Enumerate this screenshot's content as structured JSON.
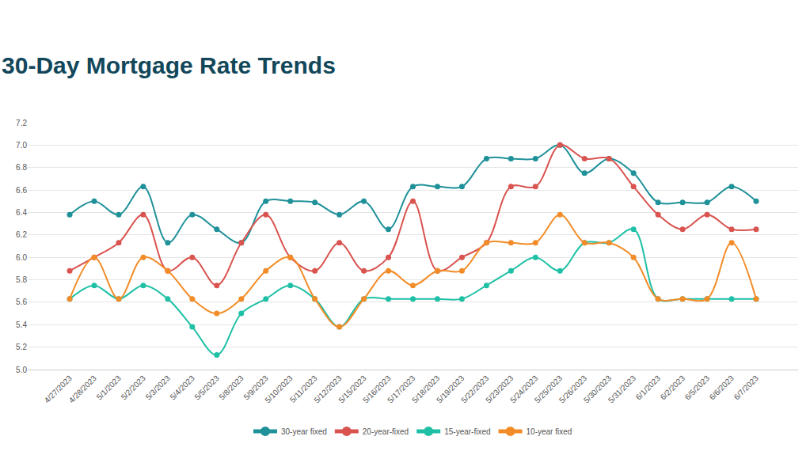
{
  "chart_data": {
    "type": "line",
    "title": "30-Day Mortgage Rate Trends",
    "categories": [
      "4/27/2023",
      "4/28/2023",
      "5/1/2023",
      "5/2/2023",
      "5/3/2023",
      "5/4/2023",
      "5/5/2023",
      "5/8/2023",
      "5/9/2023",
      "5/10/2023",
      "5/11/2023",
      "5/12/2023",
      "5/15/2023",
      "5/16/2023",
      "5/17/2023",
      "5/18/2023",
      "5/19/2023",
      "5/22/2023",
      "5/23/2023",
      "5/24/2023",
      "5/25/2023",
      "5/26/2023",
      "5/30/2023",
      "5/31/2023",
      "6/1/2023",
      "6/2/2023",
      "6/5/2023",
      "6/6/2023",
      "6/7/2023"
    ],
    "series": [
      {
        "name": "30-year fixed",
        "color": "#1f9199",
        "values": [
          6.38,
          6.5,
          6.38,
          6.63,
          6.13,
          6.38,
          6.25,
          6.13,
          6.5,
          6.5,
          6.49,
          6.38,
          6.5,
          6.25,
          6.63,
          6.63,
          6.63,
          6.88,
          6.88,
          6.88,
          7.0,
          6.75,
          6.88,
          6.75,
          6.49,
          6.49,
          6.49,
          6.63,
          6.5
        ]
      },
      {
        "name": "20-year-fixed",
        "color": "#d9534f",
        "values": [
          5.88,
          6.0,
          6.13,
          6.38,
          5.88,
          6.0,
          5.75,
          6.13,
          6.38,
          6.0,
          5.88,
          6.13,
          5.88,
          6.0,
          6.5,
          5.88,
          6.0,
          6.13,
          6.63,
          6.63,
          7.0,
          6.88,
          6.88,
          6.63,
          6.38,
          6.25,
          6.38,
          6.25,
          6.25
        ]
      },
      {
        "name": "15-year-fixed",
        "color": "#1fc0a6",
        "values": [
          5.63,
          5.75,
          5.63,
          5.75,
          5.63,
          5.38,
          5.13,
          5.5,
          5.63,
          5.75,
          5.63,
          5.38,
          5.63,
          5.63,
          5.63,
          5.63,
          5.63,
          5.75,
          5.88,
          6.0,
          5.88,
          6.13,
          6.13,
          6.25,
          5.63,
          5.63,
          5.63,
          5.63,
          5.63
        ]
      },
      {
        "name": "10-year fixed",
        "color": "#f28c28",
        "values": [
          5.63,
          6.0,
          5.63,
          6.0,
          5.88,
          5.63,
          5.5,
          5.63,
          5.88,
          6.0,
          5.63,
          5.38,
          5.63,
          5.88,
          5.75,
          5.88,
          5.88,
          6.13,
          6.13,
          6.13,
          6.38,
          6.13,
          6.13,
          6.0,
          5.63,
          5.63,
          5.63,
          6.13,
          5.63
        ]
      }
    ],
    "ylim": [
      5.0,
      7.2
    ],
    "yticks": [
      {
        "value": 5.0,
        "label": "5.0"
      },
      5.2,
      5.4,
      5.6,
      5.8,
      {
        "value": 6.0,
        "label": "6.0"
      },
      6.2,
      6.4,
      6.6,
      6.8,
      {
        "value": 7.0,
        "label": "7.0"
      },
      7.2
    ],
    "grid": true,
    "legend": "bottom",
    "marker": "circle",
    "line_style": "spline"
  }
}
